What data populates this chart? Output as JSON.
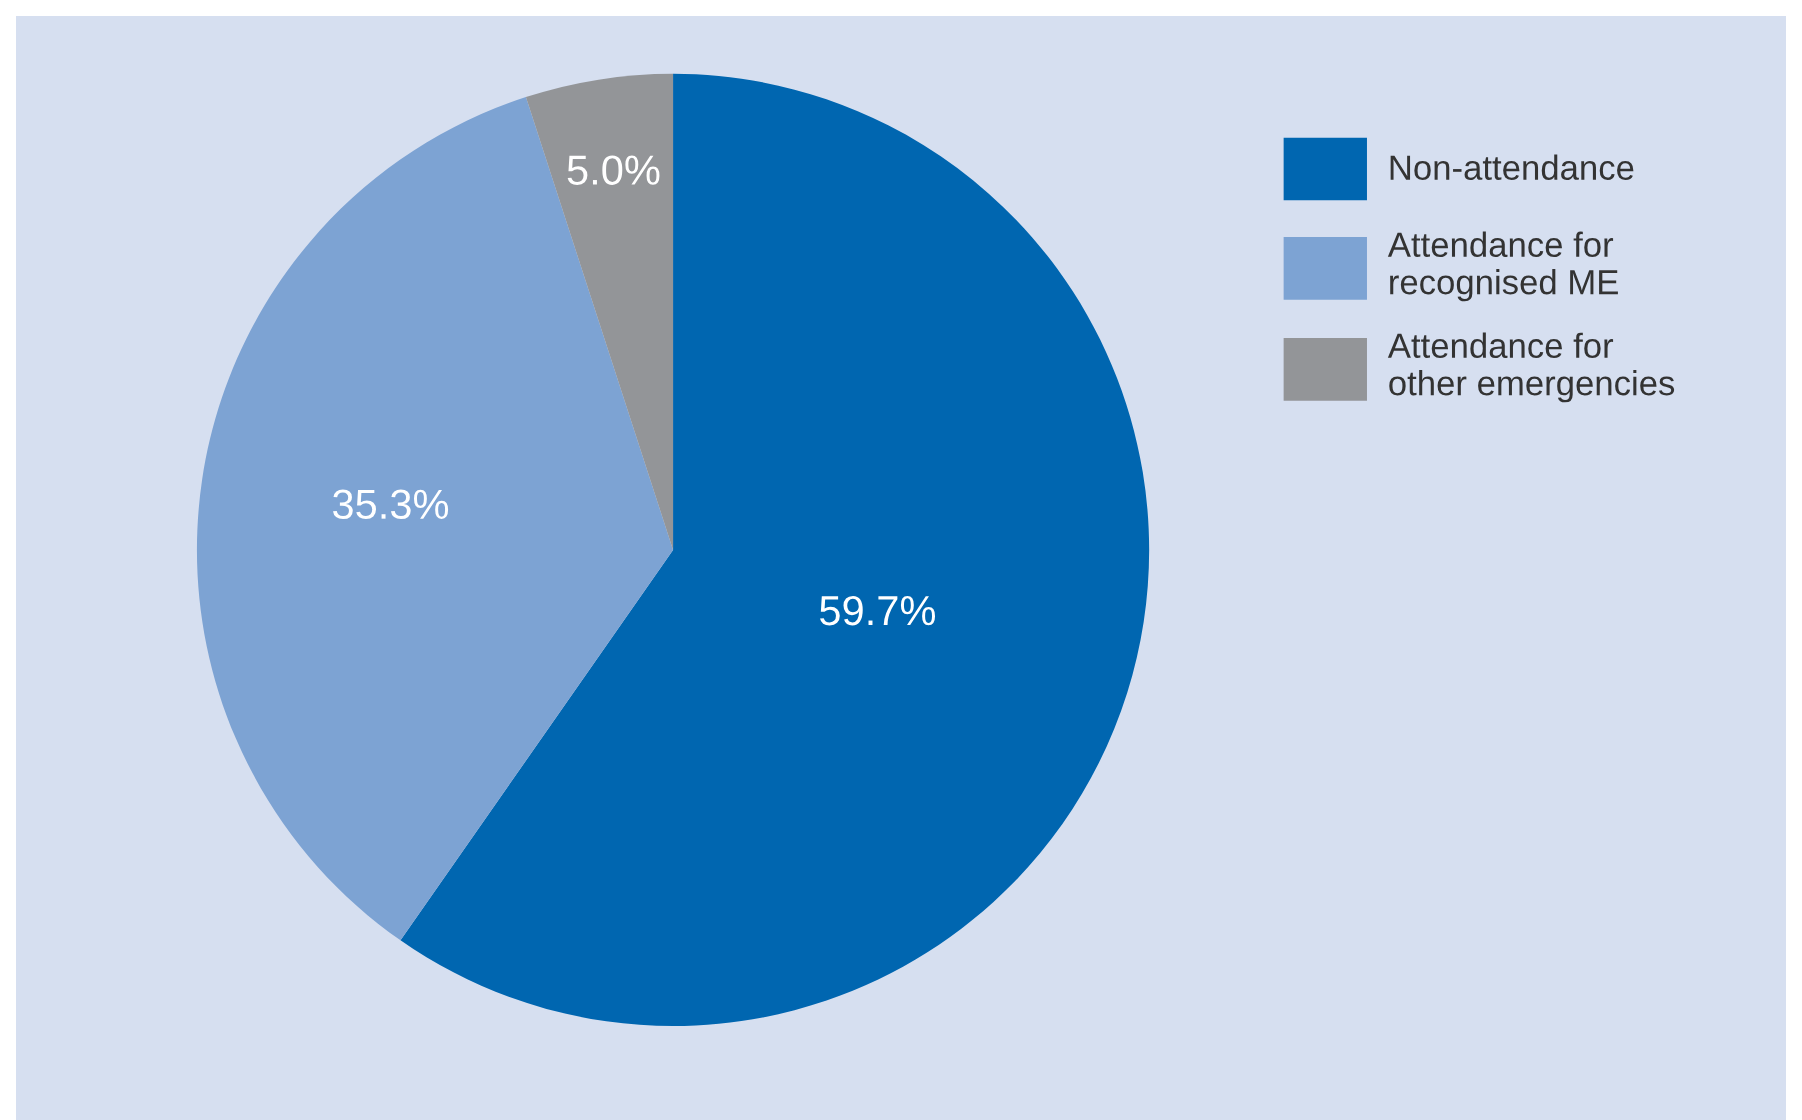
{
  "chart_data": {
    "type": "pie",
    "categories": [
      "Non-attendance",
      "Attendance for\nrecognised ME",
      "Attendance for\nother emergencies"
    ],
    "values": [
      59.7,
      35.3,
      5.0
    ],
    "colors": [
      "#0066b0",
      "#7da3d3",
      "#939598"
    ],
    "value_labels": [
      "59.7%",
      "35.3%",
      "5.0%"
    ],
    "legend": "top right"
  }
}
